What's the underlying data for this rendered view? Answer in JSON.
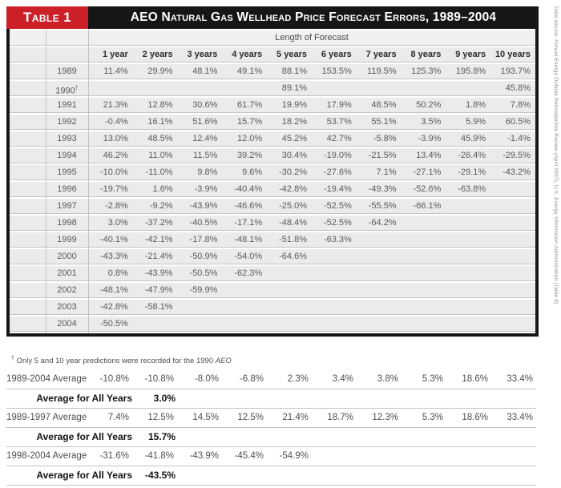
{
  "table": {
    "label": "Table 1",
    "title": "AEO Natural Gas Wellhead Price Forecast Errors, 1989–2004",
    "forecast_header": "Length of Forecast",
    "columns": [
      "1 year",
      "2 years",
      "3 years",
      "4 years",
      "5 years",
      "6 years",
      "7 years",
      "8 years",
      "9 years",
      "10 years"
    ],
    "rows": [
      {
        "year": "1989",
        "dagger": false,
        "values": [
          "11.4%",
          "29.9%",
          "48.1%",
          "49.1%",
          "88.1%",
          "153.5%",
          "119.5%",
          "125.3%",
          "195.8%",
          "193.7%"
        ]
      },
      {
        "year": "1990",
        "dagger": true,
        "values": [
          "",
          "",
          "",
          "",
          "89.1%",
          "",
          "",
          "",
          "",
          "45.8%"
        ]
      },
      {
        "year": "1991",
        "dagger": false,
        "values": [
          "21.3%",
          "12.8%",
          "30.6%",
          "61.7%",
          "19.9%",
          "17.9%",
          "48.5%",
          "50.2%",
          "1.8%",
          "7.8%"
        ]
      },
      {
        "year": "1992",
        "dagger": false,
        "values": [
          "-0.4%",
          "16.1%",
          "51.6%",
          "15.7%",
          "18.2%",
          "53.7%",
          "55.1%",
          "3.5%",
          "5.9%",
          "60.5%"
        ]
      },
      {
        "year": "1993",
        "dagger": false,
        "values": [
          "13.0%",
          "48.5%",
          "12.4%",
          "12.0%",
          "45.2%",
          "42.7%",
          "-5.8%",
          "-3.9%",
          "45.9%",
          "-1.4%"
        ]
      },
      {
        "year": "1994",
        "dagger": false,
        "values": [
          "46.2%",
          "11.0%",
          "11.5%",
          "39.2%",
          "30.4%",
          "-19.0%",
          "-21.5%",
          "13.4%",
          "-26.4%",
          "-29.5%"
        ]
      },
      {
        "year": "1995",
        "dagger": false,
        "values": [
          "-10.0%",
          "-11.0%",
          "9.8%",
          "9.6%",
          "-30.2%",
          "-27.6%",
          "7.1%",
          "-27.1%",
          "-29.1%",
          "-43.2%"
        ]
      },
      {
        "year": "1996",
        "dagger": false,
        "values": [
          "-19.7%",
          "1.6%",
          "-3.9%",
          "-40.4%",
          "-42.8%",
          "-19.4%",
          "-49.3%",
          "-52.6%",
          "-63.8%",
          ""
        ]
      },
      {
        "year": "1997",
        "dagger": false,
        "values": [
          "-2.8%",
          "-9.2%",
          "-43.9%",
          "-46.6%",
          "-25.0%",
          "-52.5%",
          "-55.5%",
          "-66.1%",
          "",
          ""
        ]
      },
      {
        "year": "1998",
        "dagger": false,
        "values": [
          "3.0%",
          "-37.2%",
          "-40.5%",
          "-17.1%",
          "-48.4%",
          "-52.5%",
          "-64.2%",
          "",
          "",
          ""
        ]
      },
      {
        "year": "1999",
        "dagger": false,
        "values": [
          "-40.1%",
          "-42.1%",
          "-17.8%",
          "-48.1%",
          "-51.8%",
          "-63.3%",
          "",
          "",
          "",
          ""
        ]
      },
      {
        "year": "2000",
        "dagger": false,
        "values": [
          "-43.3%",
          "-21.4%",
          "-50.9%",
          "-54.0%",
          "-64.6%",
          "",
          "",
          "",
          "",
          ""
        ]
      },
      {
        "year": "2001",
        "dagger": false,
        "values": [
          "0.8%",
          "-43.9%",
          "-50.5%",
          "-62.3%",
          "",
          "",
          "",
          "",
          "",
          ""
        ]
      },
      {
        "year": "2002",
        "dagger": false,
        "values": [
          "-48.1%",
          "-47.9%",
          "-59.9%",
          "",
          "",
          "",
          "",
          "",
          "",
          ""
        ]
      },
      {
        "year": "2003",
        "dagger": false,
        "values": [
          "-42.8%",
          "-58.1%",
          "",
          "",
          "",
          "",
          "",
          "",
          "",
          ""
        ]
      },
      {
        "year": "2004",
        "dagger": false,
        "values": [
          "-50.5%",
          "",
          "",
          "",
          "",
          "",
          "",
          "",
          "",
          ""
        ]
      }
    ]
  },
  "footnote": {
    "dagger": "†",
    "text": "Only 5 and 10 year predictions were recorded for the 1990",
    "italic": "AEO"
  },
  "averages": [
    {
      "type": "range",
      "label": "1989-2004 Average",
      "values": [
        "-10.8%",
        "-10.8%",
        "-8.0%",
        "-6.8%",
        "2.3%",
        "3.4%",
        "3.8%",
        "5.3%",
        "18.6%",
        "33.4%"
      ]
    },
    {
      "type": "all",
      "label": "Average for All Years",
      "value": "3.0%"
    },
    {
      "type": "range",
      "label": "1989-1997 Average",
      "values": [
        "7.4%",
        "12.5%",
        "14.5%",
        "12.5%",
        "21.4%",
        "18.7%",
        "12.3%",
        "5.3%",
        "18.6%",
        "33.4%"
      ]
    },
    {
      "type": "all",
      "label": "Average for All Years",
      "value": "15.7%"
    },
    {
      "type": "range",
      "label": "1998-2004 Average",
      "values": [
        "-31.6%",
        "-41.8%",
        "-43.9%",
        "-45.4%",
        "-54.9%",
        "",
        "",
        "",
        "",
        ""
      ]
    },
    {
      "type": "all",
      "label": "Average for All Years",
      "value": "-43.5%"
    }
  ],
  "source_note": "Data source: Annual Energy Outlook Retrospective Review (April 2007), U.S. Energy Information Administration (Table 8)",
  "colors": {
    "accent_red": "#cb2027",
    "bar_black": "#161616",
    "row_background": "#ebebeb",
    "grid_line": "#c3c3c3",
    "body_text": "#59595b"
  }
}
